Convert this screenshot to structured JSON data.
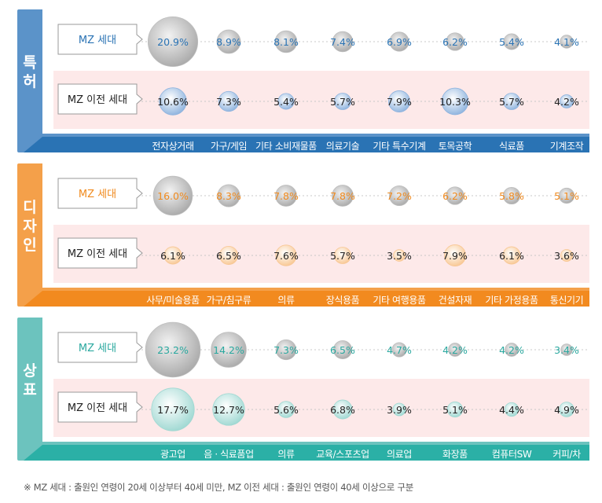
{
  "chart_data": [
    {
      "type": "bubble-table",
      "title": "특허",
      "colors": {
        "main": "#5b93c9",
        "dark": "#2a73b4",
        "bubble": "#8eb3de",
        "rowBg": "#fde9e9",
        "label": "#2a73b4"
      },
      "categories": [
        "전자상거래",
        "가구/게임",
        "기타 소비재물품",
        "의료기술",
        "기타 특수기계",
        "토목공학",
        "식료품",
        "기계조작"
      ],
      "series": [
        {
          "name": "MZ 세대",
          "values": [
            20.9,
            8.9,
            8.1,
            7.4,
            6.9,
            6.2,
            5.4,
            4.1
          ]
        },
        {
          "name": "MZ 이전 세대",
          "values": [
            10.6,
            7.3,
            5.4,
            5.7,
            7.9,
            10.3,
            5.7,
            4.2
          ]
        }
      ],
      "labels": [
        [
          "20.9%",
          "8.9%",
          "8.1%",
          "7.4%",
          "6.9%",
          "6.2%",
          "5.4%",
          "4.1%"
        ],
        [
          "10.6%",
          "7.3%",
          "5.4%",
          "5.7%",
          "7.9%",
          "10.3%",
          "5.7%",
          "4.2%"
        ]
      ]
    },
    {
      "type": "bubble-table",
      "title": "디자인",
      "colors": {
        "main": "#f4a04a",
        "dark": "#f28a1f",
        "bubble": "#f8c793",
        "rowBg": "#fde9e9",
        "label": "#f08a1e"
      },
      "categories": [
        "사무/미술용품",
        "가구/침구류",
        "의류",
        "장식용품",
        "기타 여행용품",
        "건설자재",
        "기타 가정용품",
        "통신기기"
      ],
      "series": [
        {
          "name": "MZ 세대",
          "values": [
            16.0,
            8.3,
            7.8,
            7.8,
            7.2,
            6.2,
            5.8,
            5.1
          ]
        },
        {
          "name": "MZ 이전 세대",
          "values": [
            6.1,
            6.5,
            7.6,
            5.7,
            3.5,
            7.9,
            6.1,
            3.6
          ]
        }
      ],
      "labels": [
        [
          "16.0%",
          "8.3%",
          "7.8%",
          "7.8%",
          "7.2%",
          "6.2%",
          "5.8%",
          "5.1%"
        ],
        [
          "6.1%",
          "6.5%",
          "7.6%",
          "5.7%",
          "3.5%",
          "7.9%",
          "6.1%",
          "3.6%"
        ]
      ]
    },
    {
      "type": "bubble-table",
      "title": "상표",
      "colors": {
        "main": "#6cc3be",
        "dark": "#2bb0a6",
        "bubble": "#9fd8d2",
        "rowBg": "#fde9e9",
        "label": "#2aa89f"
      },
      "categories": [
        "광고업",
        "음 · 식료품업",
        "의류",
        "교육/스포츠업",
        "의료업",
        "화장품",
        "컴퓨터SW",
        "커피/차"
      ],
      "series": [
        {
          "name": "MZ 세대",
          "values": [
            23.2,
            14.2,
            7.3,
            6.5,
            4.7,
            4.2,
            4.2,
            3.4
          ]
        },
        {
          "name": "MZ 이전 세대",
          "values": [
            17.7,
            12.7,
            5.6,
            6.8,
            3.9,
            5.1,
            4.4,
            4.9
          ]
        }
      ],
      "labels": [
        [
          "23.2%",
          "14.2%",
          "7.3%",
          "6.5%",
          "4.7%",
          "4.2%",
          "4.2%",
          "3.4%"
        ],
        [
          "17.7%",
          "12.7%",
          "5.6%",
          "6.8%",
          "3.9%",
          "5.1%",
          "4.4%",
          "4.9%"
        ]
      ]
    }
  ],
  "footnote": "※ MZ 세대 : 출원인 연령이 20세 이상부터 40세 미만, MZ 이전 세대 : 출원인 연령이 40세 이상으로 구분"
}
